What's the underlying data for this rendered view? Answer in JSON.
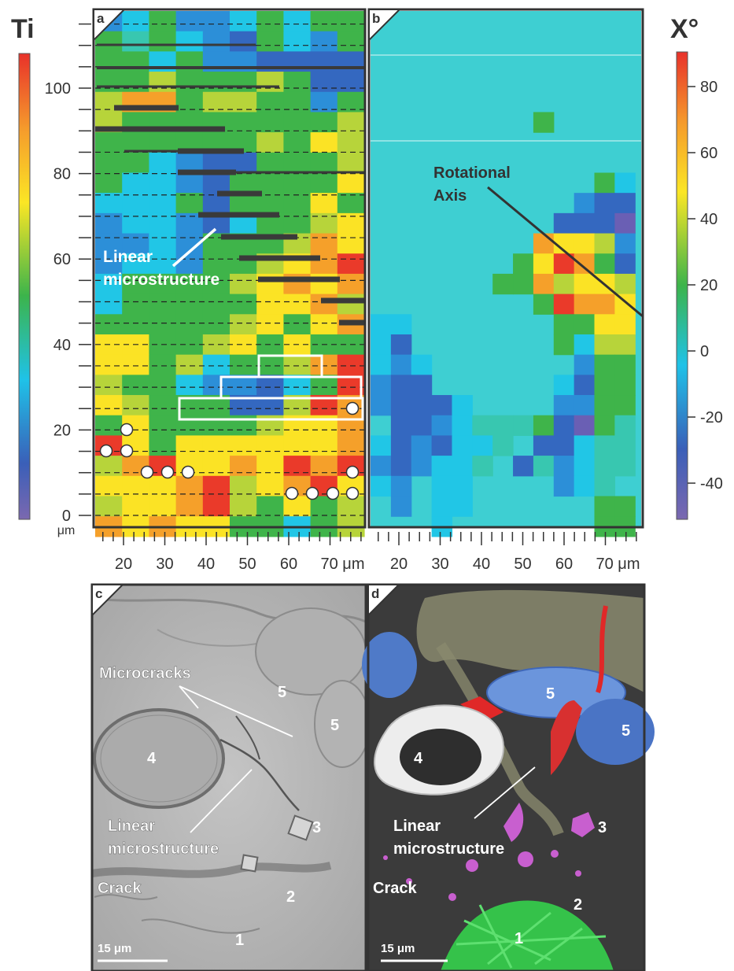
{
  "left_scale": {
    "title": "Ti",
    "ticks": [
      "0",
      "20",
      "40",
      "60",
      "80",
      "100"
    ],
    "values": [
      0,
      20,
      40,
      60,
      80,
      100
    ],
    "unit": "μm"
  },
  "right_scale": {
    "title": "Χ°",
    "ticks": [
      "-40",
      "-20",
      "0",
      "20",
      "40",
      "60",
      "80"
    ],
    "values": [
      -40,
      -20,
      0,
      20,
      40,
      60,
      80
    ]
  },
  "bottom_axis": {
    "ticks_a": [
      "20",
      "30",
      "40",
      "50",
      "60",
      "70 μm"
    ],
    "ticks_b": [
      "20",
      "30",
      "40",
      "50",
      "60",
      "70 μm"
    ]
  },
  "panels": {
    "a": {
      "letter": "a",
      "annotation": "Linear\nmicrostructure",
      "annotation_line1": "Linear",
      "annotation_line2": "microstructure"
    },
    "b": {
      "letter": "b",
      "annotation_line1": "Rotational",
      "annotation_line2": "Axis"
    },
    "c": {
      "letter": "c",
      "microcracks": "Microcracks",
      "linear_line1": "Linear",
      "linear_line2": "microstructure",
      "crack": "Crack",
      "scale": "15 μm",
      "numbers": [
        "1",
        "2",
        "3",
        "4",
        "5",
        "5"
      ]
    },
    "d": {
      "letter": "d",
      "linear_line1": "Linear",
      "linear_line2": "microstructure",
      "crack": "Crack",
      "scale": "15 μm",
      "numbers": [
        "1",
        "2",
        "3",
        "4",
        "5",
        "5"
      ]
    }
  },
  "colors": {
    "scale_top": "#e8312a",
    "scale_orange": "#f59a2c",
    "scale_yellow": "#fbe625",
    "scale_green": "#3cb44b",
    "scale_cyan": "#26c8d8",
    "scale_blue": "#2f6fc0",
    "scale_purple": "#7b68b0",
    "panel_c_bg": "#b8b8b8",
    "panel_d_bg": "#3a3a3a"
  }
}
